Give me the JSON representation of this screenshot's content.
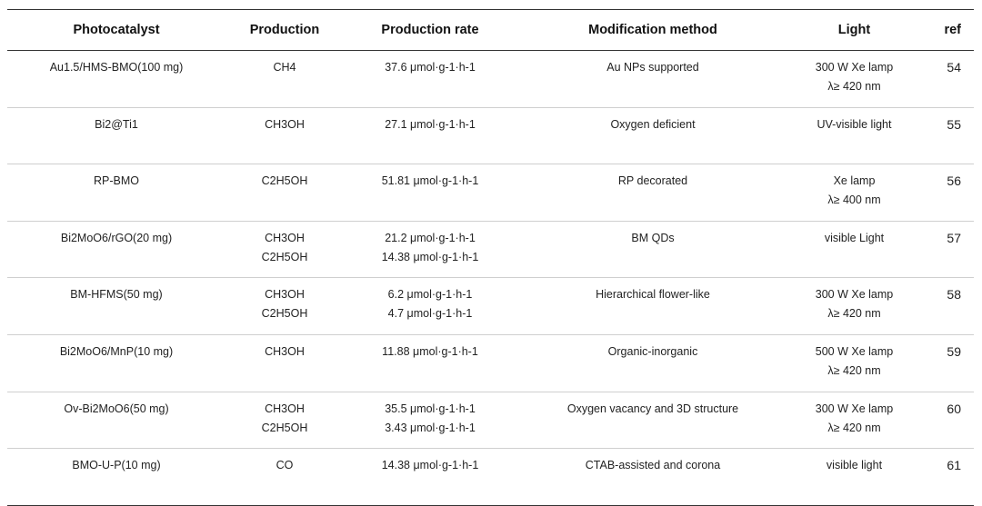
{
  "headers": {
    "photocatalyst": "Photocatalyst",
    "production": "Production",
    "production_rate": "Production rate",
    "modification_method": "Modification method",
    "light": "Light",
    "ref": "ref"
  },
  "rows": [
    {
      "photocatalyst": "Au1.5/HMS-BMO(100 mg)",
      "production": [
        "CH4"
      ],
      "rate": [
        "37.6 μmol·g-1·h-1"
      ],
      "method": "Au NPs supported",
      "light": [
        "300 W Xe lamp",
        "λ≥ 420 nm"
      ],
      "ref": "54"
    },
    {
      "photocatalyst": "Bi2@Ti1",
      "production": [
        "CH3OH"
      ],
      "rate": [
        "27.1 μmol·g-1·h-1"
      ],
      "method": "Oxygen deficient",
      "light": [
        "UV-visible light"
      ],
      "ref": "55"
    },
    {
      "photocatalyst": "RP-BMO",
      "production": [
        "C2H5OH"
      ],
      "rate": [
        "51.81 μmol·g-1·h-1"
      ],
      "method": "RP decorated",
      "light": [
        "Xe lamp",
        "λ≥ 400 nm"
      ],
      "ref": "56"
    },
    {
      "photocatalyst": "Bi2MoO6/rGO(20 mg)",
      "production": [
        "CH3OH",
        "C2H5OH"
      ],
      "rate": [
        "21.2 μmol·g-1·h-1",
        "14.38 μmol·g-1·h-1"
      ],
      "method": "BM QDs",
      "light": [
        "visible Light"
      ],
      "ref": "57"
    },
    {
      "photocatalyst": "BM-HFMS(50 mg)",
      "production": [
        "CH3OH",
        "C2H5OH"
      ],
      "rate": [
        "6.2 μmol·g-1·h-1",
        "4.7 μmol·g-1·h-1"
      ],
      "method": "Hierarchical flower-like",
      "light": [
        "300 W Xe lamp",
        "λ≥ 420 nm"
      ],
      "ref": "58"
    },
    {
      "photocatalyst": "Bi2MoO6/MnP(10 mg)",
      "production": [
        "CH3OH"
      ],
      "rate": [
        "11.88 μmol·g-1·h-1"
      ],
      "method": "Organic-inorganic",
      "light": [
        "500 W Xe lamp",
        "λ≥ 420 nm"
      ],
      "ref": "59"
    },
    {
      "photocatalyst": "Ov-Bi2MoO6(50 mg)",
      "production": [
        "CH3OH",
        "C2H5OH"
      ],
      "rate": [
        "35.5 μmol·g-1·h-1",
        "3.43 μmol·g-1·h-1"
      ],
      "method": "Oxygen vacancy and 3D structure",
      "light": [
        "300 W Xe lamp",
        "λ≥ 420 nm"
      ],
      "ref": "60"
    },
    {
      "photocatalyst": "BMO-U-P(10 mg)",
      "production": [
        "CO"
      ],
      "rate": [
        "14.38 μmol·g-1·h-1"
      ],
      "method": "CTAB-assisted and corona",
      "light": [
        "visible light"
      ],
      "ref": "61"
    }
  ]
}
